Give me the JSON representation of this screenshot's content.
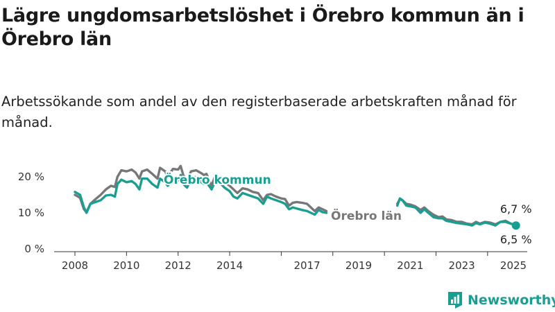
{
  "header": {
    "title": "Lägre ungdomsarbetslöshet i Örebro kommun än i Örebro län",
    "subtitle": "Arbetssökande som andel av den registerbaserade arbetskraften månad för månad."
  },
  "brand": {
    "name": "Newsworthy",
    "logo_icon": "bar-chart-document-icon"
  },
  "chart_data": {
    "type": "line",
    "x_ticks": [
      "2008",
      "2010",
      "2012",
      "2014",
      "2017",
      "2019",
      "2021",
      "2023",
      "2025"
    ],
    "y_ticks": [
      "0 %",
      "10 %",
      "20 %"
    ],
    "ylim": [
      0,
      25
    ],
    "xlim": [
      2007.5,
      2025.6
    ],
    "grid": false,
    "series": [
      {
        "name": "Örebro län",
        "color": "#777777",
        "points": [
          [
            2008.0,
            15.0
          ],
          [
            2008.2,
            14.2
          ],
          [
            2008.35,
            11.0
          ],
          [
            2008.45,
            10.2
          ],
          [
            2008.6,
            12.5
          ],
          [
            2008.8,
            13.8
          ],
          [
            2009.0,
            15.0
          ],
          [
            2009.2,
            16.5
          ],
          [
            2009.4,
            17.5
          ],
          [
            2009.55,
            17.2
          ],
          [
            2009.65,
            20.0
          ],
          [
            2009.8,
            21.8
          ],
          [
            2010.0,
            21.5
          ],
          [
            2010.2,
            22.0
          ],
          [
            2010.35,
            21.2
          ],
          [
            2010.5,
            19.5
          ],
          [
            2010.6,
            21.5
          ],
          [
            2010.8,
            22.0
          ],
          [
            2011.0,
            20.8
          ],
          [
            2011.2,
            19.5
          ],
          [
            2011.3,
            22.5
          ],
          [
            2011.5,
            21.5
          ],
          [
            2011.6,
            20.0
          ],
          [
            2011.8,
            22.2
          ],
          [
            2012.0,
            22.0
          ],
          [
            2012.1,
            23.0
          ],
          [
            2012.2,
            20.5
          ],
          [
            2012.35,
            19.0
          ],
          [
            2012.5,
            21.5
          ],
          [
            2012.7,
            21.8
          ],
          [
            2012.9,
            21.0
          ],
          [
            2013.0,
            20.5
          ],
          [
            2013.1,
            20.8
          ],
          [
            2013.3,
            17.5
          ],
          [
            2013.45,
            20.5
          ],
          [
            2013.6,
            19.8
          ],
          [
            2013.8,
            18.5
          ],
          [
            2014.0,
            17.5
          ],
          [
            2014.15,
            16.5
          ],
          [
            2014.3,
            15.5
          ],
          [
            2014.5,
            16.8
          ],
          [
            2014.7,
            16.5
          ],
          [
            2014.9,
            15.8
          ],
          [
            2015.1,
            15.5
          ],
          [
            2015.3,
            13.5
          ],
          [
            2015.45,
            15.0
          ],
          [
            2015.6,
            15.2
          ],
          [
            2015.8,
            14.5
          ],
          [
            2016.0,
            14.0
          ],
          [
            2016.15,
            13.8
          ],
          [
            2016.3,
            12.0
          ],
          [
            2016.45,
            12.8
          ],
          [
            2016.6,
            13.0
          ],
          [
            2016.8,
            12.8
          ],
          [
            2017.0,
            12.5
          ],
          [
            2017.15,
            11.5
          ],
          [
            2017.3,
            10.5
          ],
          [
            2017.45,
            11.5
          ],
          [
            2017.6,
            11.0
          ],
          [
            2017.75,
            10.5
          ]
        ],
        "points_2": [
          [
            2020.5,
            12.5
          ],
          [
            2020.6,
            13.8
          ],
          [
            2020.7,
            13.5
          ],
          [
            2020.85,
            12.5
          ],
          [
            2021.0,
            12.3
          ],
          [
            2021.2,
            11.8
          ],
          [
            2021.4,
            10.8
          ],
          [
            2021.55,
            11.5
          ],
          [
            2021.7,
            10.5
          ],
          [
            2021.9,
            9.5
          ],
          [
            2022.1,
            8.8
          ],
          [
            2022.25,
            9.0
          ],
          [
            2022.4,
            8.2
          ],
          [
            2022.6,
            8.0
          ],
          [
            2022.8,
            7.5
          ],
          [
            2023.0,
            7.5
          ],
          [
            2023.2,
            7.0
          ],
          [
            2023.4,
            6.8
          ],
          [
            2023.55,
            7.5
          ],
          [
            2023.7,
            7.0
          ],
          [
            2023.9,
            7.5
          ],
          [
            2024.1,
            7.3
          ],
          [
            2024.3,
            6.8
          ],
          [
            2024.5,
            7.5
          ],
          [
            2024.7,
            7.8
          ],
          [
            2024.9,
            7.0
          ],
          [
            2025.1,
            6.7
          ]
        ]
      },
      {
        "name": "Örebro kommun",
        "color": "#1a9e92",
        "points": [
          [
            2008.0,
            15.8
          ],
          [
            2008.2,
            15.0
          ],
          [
            2008.35,
            11.5
          ],
          [
            2008.45,
            10.0
          ],
          [
            2008.6,
            12.5
          ],
          [
            2008.8,
            13.0
          ],
          [
            2009.0,
            13.5
          ],
          [
            2009.2,
            14.8
          ],
          [
            2009.4,
            15.0
          ],
          [
            2009.55,
            14.5
          ],
          [
            2009.65,
            18.0
          ],
          [
            2009.8,
            19.2
          ],
          [
            2010.0,
            18.5
          ],
          [
            2010.2,
            18.8
          ],
          [
            2010.35,
            18.0
          ],
          [
            2010.5,
            16.5
          ],
          [
            2010.6,
            19.5
          ],
          [
            2010.8,
            19.5
          ],
          [
            2011.0,
            18.0
          ],
          [
            2011.2,
            17.0
          ],
          [
            2011.3,
            19.5
          ],
          [
            2011.5,
            18.5
          ],
          [
            2011.6,
            17.5
          ],
          [
            2011.8,
            19.5
          ],
          [
            2012.0,
            19.0
          ],
          [
            2012.1,
            20.5
          ],
          [
            2012.2,
            18.0
          ],
          [
            2012.35,
            17.0
          ],
          [
            2012.5,
            19.5
          ],
          [
            2012.7,
            20.0
          ],
          [
            2012.9,
            18.5
          ],
          [
            2013.0,
            18.0
          ],
          [
            2013.1,
            18.5
          ],
          [
            2013.3,
            16.5
          ],
          [
            2013.45,
            19.0
          ],
          [
            2013.6,
            18.5
          ],
          [
            2013.8,
            17.0
          ],
          [
            2014.0,
            16.0
          ],
          [
            2014.15,
            14.5
          ],
          [
            2014.3,
            14.0
          ],
          [
            2014.5,
            15.5
          ],
          [
            2014.7,
            15.0
          ],
          [
            2014.9,
            14.5
          ],
          [
            2015.1,
            14.0
          ],
          [
            2015.3,
            12.5
          ],
          [
            2015.45,
            14.5
          ],
          [
            2015.6,
            14.0
          ],
          [
            2015.8,
            13.5
          ],
          [
            2016.0,
            13.0
          ],
          [
            2016.15,
            12.5
          ],
          [
            2016.3,
            11.0
          ],
          [
            2016.45,
            11.5
          ],
          [
            2016.6,
            11.2
          ],
          [
            2016.8,
            10.8
          ],
          [
            2017.0,
            10.5
          ],
          [
            2017.15,
            10.0
          ],
          [
            2017.3,
            9.5
          ],
          [
            2017.45,
            10.8
          ],
          [
            2017.6,
            10.2
          ],
          [
            2017.75,
            10.0
          ]
        ],
        "points_2": [
          [
            2020.5,
            12.0
          ],
          [
            2020.6,
            14.0
          ],
          [
            2020.7,
            13.5
          ],
          [
            2020.85,
            12.0
          ],
          [
            2021.0,
            11.8
          ],
          [
            2021.2,
            11.5
          ],
          [
            2021.4,
            10.0
          ],
          [
            2021.55,
            11.0
          ],
          [
            2021.7,
            10.0
          ],
          [
            2021.9,
            8.8
          ],
          [
            2022.1,
            8.5
          ],
          [
            2022.25,
            8.5
          ],
          [
            2022.4,
            7.8
          ],
          [
            2022.6,
            7.5
          ],
          [
            2022.8,
            7.2
          ],
          [
            2023.0,
            7.0
          ],
          [
            2023.2,
            6.8
          ],
          [
            2023.4,
            6.5
          ],
          [
            2023.55,
            7.2
          ],
          [
            2023.7,
            6.8
          ],
          [
            2023.9,
            7.3
          ],
          [
            2024.1,
            7.0
          ],
          [
            2024.3,
            6.5
          ],
          [
            2024.5,
            7.5
          ],
          [
            2024.7,
            7.5
          ],
          [
            2024.9,
            7.0
          ],
          [
            2025.1,
            6.5
          ]
        ]
      }
    ],
    "labels": {
      "lan_series": "Örebro län",
      "kommun_series": "Örebro kommun",
      "lan_end": "6,7 %",
      "kommun_end": "6,5 %"
    }
  }
}
